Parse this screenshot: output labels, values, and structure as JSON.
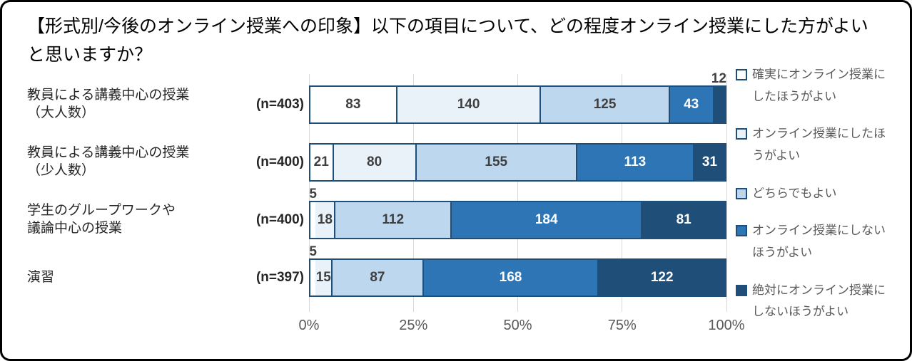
{
  "title": {
    "text": "【形式別/今後のオンライン授業への印象】以下の項目について、どの程度オンライン授業にした方がよいと思いますか？"
  },
  "chart_data": {
    "type": "bar",
    "orientation": "horizontal",
    "stacked": true,
    "stack_normalized_to": "100%",
    "legend_position": "right",
    "grid": "vertical-lines",
    "outside_label_threshold_pct": 3.5,
    "x_axis": {
      "tick_labels": [
        "0%",
        "25%",
        "50%",
        "75%",
        "100%"
      ],
      "min": 0,
      "max": 100
    },
    "categories": [
      {
        "label_lines": [
          "教員による講義中心の授業",
          "（大人数）"
        ],
        "n_label": "(n=403)",
        "n": 403
      },
      {
        "label_lines": [
          "教員による講義中心の授業",
          "（少人数）"
        ],
        "n_label": "(n=400)",
        "n": 400
      },
      {
        "label_lines": [
          "学生のグループワークや",
          "議論中心の授業"
        ],
        "n_label": "(n=400)",
        "n": 400
      },
      {
        "label_lines": [
          "演習"
        ],
        "n_label": "(n=397)",
        "n": 397
      }
    ],
    "series": [
      {
        "name": "確実にオンライン授業にしたほうがよい",
        "color": "#FFFFFF",
        "text_color": "#3F3F3F",
        "values": [
          83,
          21,
          5,
          5
        ]
      },
      {
        "name": "オンライン授業にしたほうがよい",
        "color": "#E9F1F9",
        "text_color": "#3F3F3F",
        "values": [
          140,
          80,
          18,
          15
        ]
      },
      {
        "name": "どちらでもよい",
        "color": "#BDD7EE",
        "text_color": "#3F3F3F",
        "values": [
          125,
          155,
          112,
          87
        ]
      },
      {
        "name": "オンライン授業にしないほうがよい",
        "color": "#2E75B6",
        "text_color": "#FFFFFF",
        "values": [
          43,
          113,
          184,
          168
        ]
      },
      {
        "name": "絶対にオンライン授業にしないほうがよい",
        "color": "#1F4E79",
        "text_color": "#FFFFFF",
        "values": [
          12,
          31,
          81,
          122
        ]
      }
    ]
  },
  "palette": {
    "segment_border": "#1F4E79",
    "gridline": "#D9D9D9",
    "axis_text": "#595959",
    "legend_text": "#595959",
    "value_text_dark": "#3F3F3F",
    "category_text": "#262626",
    "frame_border": "#000000",
    "background": "#FFFFFF"
  }
}
